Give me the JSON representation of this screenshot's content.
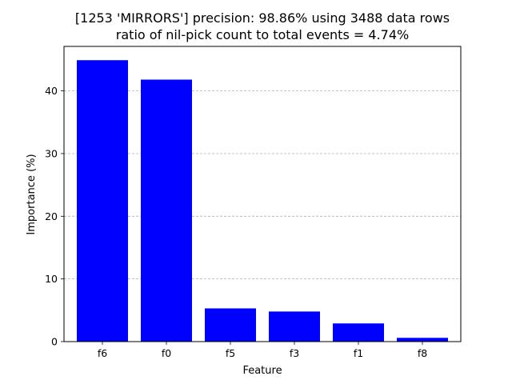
{
  "chart_data": {
    "type": "bar",
    "title_line1": "[1253 'MIRRORS'] precision: 98.86% using 3488 data rows",
    "title_line2": "ratio of nil-pick count to total events = 4.74%",
    "xlabel": "Feature",
    "ylabel": "Importance (%)",
    "categories": [
      "f6",
      "f0",
      "f5",
      "f3",
      "f1",
      "f8"
    ],
    "values": [
      44.9,
      41.8,
      5.3,
      4.8,
      2.9,
      0.6
    ],
    "ylim": [
      0,
      47.1
    ],
    "yticks": [
      0,
      10,
      20,
      30,
      40
    ],
    "grid": "y-dashed",
    "bar_color": "#0000ff"
  }
}
